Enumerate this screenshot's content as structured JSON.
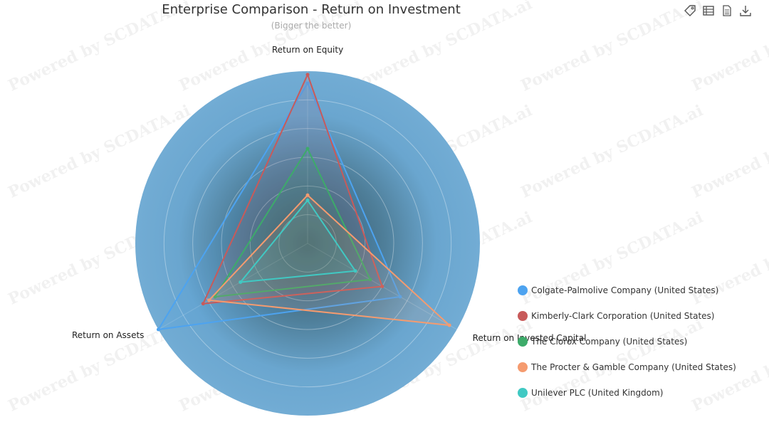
{
  "title": "Enterprise Comparison - Return on Investment",
  "subtitle": "(Bigger the better)",
  "watermark": "Powered by SCDATA.ai",
  "toolbox": [
    "tag-icon",
    "data-view-icon",
    "document-icon",
    "download-icon"
  ],
  "chart_data": {
    "type": "radar",
    "title": "Enterprise Comparison - Return on Investment",
    "subtitle": "(Bigger the better)",
    "indicators": [
      "Return on Equity",
      "Return on Invested Capital",
      "Return on Assets"
    ],
    "max": 100,
    "grid": true,
    "legend_position": "bottom-right",
    "series": [
      {
        "name": "Colgate-Palmolive Company (United States)",
        "color": "#4da3f0",
        "values": [
          93,
          62,
          100
        ]
      },
      {
        "name": "Kimberly-Clark Corporation (United States)",
        "color": "#c85a5a",
        "values": [
          98,
          50,
          70
        ]
      },
      {
        "name": "The Clorox Company (United States)",
        "color": "#3dab6a",
        "values": [
          55,
          42,
          62
        ]
      },
      {
        "name": "The Procter & Gamble Company (United States)",
        "color": "#f59b6f",
        "values": [
          28,
          95,
          66
        ]
      },
      {
        "name": "Unilever PLC (United Kingdom)",
        "color": "#40c9c3",
        "values": [
          25,
          32,
          45
        ]
      }
    ]
  }
}
